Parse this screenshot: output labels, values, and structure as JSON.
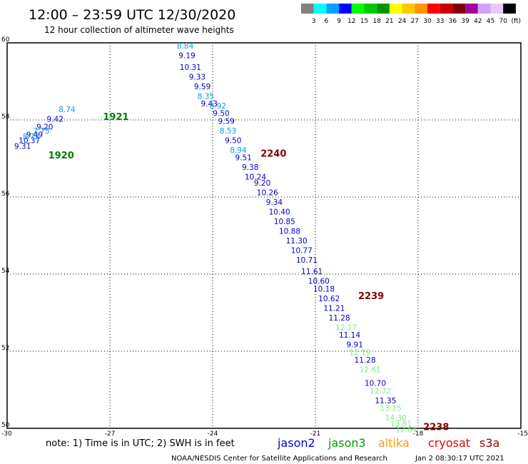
{
  "title": "12:00 – 23:59 UTC 12/30/2020",
  "subtitle": "12 hour collection of altimeter wave heights",
  "legend": {
    "colors": [
      "#808080",
      "#00ffff",
      "#00a0ff",
      "#0000ff",
      "#00ff00",
      "#00c800",
      "#009600",
      "#ffff00",
      "#ffc800",
      "#ff9600",
      "#ff0000",
      "#c80000",
      "#800000",
      "#a000a0",
      "#d2a0ff",
      "#e6c8ff",
      "#000000"
    ],
    "labels": [
      "3",
      "6",
      "9",
      "12",
      "15",
      "18",
      "21",
      "24",
      "27",
      "30",
      "33",
      "36",
      "39",
      "42",
      "45",
      "70"
    ],
    "unit": "(ft)"
  },
  "axes": {
    "x_ticks": [
      "-30",
      "-27",
      "-24",
      "-21",
      "-18",
      "-15"
    ],
    "y_ticks": [
      "50",
      "52",
      "54",
      "56",
      "58",
      "60"
    ]
  },
  "chart_data": {
    "type": "scatter",
    "xlim": [
      -30,
      -15
    ],
    "ylim": [
      50,
      60
    ],
    "grid": true,
    "series": [
      {
        "name": "jason2",
        "color": "#0000c8",
        "points": [
          {
            "lon": -28.9,
            "lat": 57.75,
            "v": "9.20"
          },
          {
            "lon": -28.6,
            "lat": 57.95,
            "v": "9.42"
          },
          {
            "lon": -29.55,
            "lat": 57.25,
            "v": "9.31"
          },
          {
            "lon": -29.2,
            "lat": 57.55,
            "v": "9.49"
          },
          {
            "lon": -29.35,
            "lat": 57.4,
            "v": "10.37"
          },
          {
            "lon": -24.75,
            "lat": 59.6,
            "v": "9.19"
          },
          {
            "lon": -24.65,
            "lat": 59.3,
            "v": "10.31"
          },
          {
            "lon": -24.45,
            "lat": 59.05,
            "v": "9.33"
          },
          {
            "lon": -24.3,
            "lat": 58.8,
            "v": "9.59"
          },
          {
            "lon": -24.1,
            "lat": 58.35,
            "v": "9.43"
          },
          {
            "lon": -23.75,
            "lat": 58.1,
            "v": "9.50"
          },
          {
            "lon": -23.6,
            "lat": 57.9,
            "v": "9.59"
          },
          {
            "lon": -23.4,
            "lat": 57.4,
            "v": "9.50"
          },
          {
            "lon": -23.1,
            "lat": 56.95,
            "v": "9.51"
          },
          {
            "lon": -22.9,
            "lat": 56.7,
            "v": "9.38"
          },
          {
            "lon": -22.75,
            "lat": 56.45,
            "v": "10.24"
          },
          {
            "lon": -22.55,
            "lat": 56.3,
            "v": "9.20"
          },
          {
            "lon": -22.4,
            "lat": 56.05,
            "v": "10.26"
          },
          {
            "lon": -22.2,
            "lat": 55.8,
            "v": "9.34"
          },
          {
            "lon": -22.05,
            "lat": 55.55,
            "v": "10.40"
          },
          {
            "lon": -21.9,
            "lat": 55.3,
            "v": "10.85"
          },
          {
            "lon": -21.75,
            "lat": 55.05,
            "v": "10.88"
          },
          {
            "lon": -21.55,
            "lat": 54.8,
            "v": "11.30"
          },
          {
            "lon": -21.4,
            "lat": 54.55,
            "v": "10.77"
          },
          {
            "lon": -21.25,
            "lat": 54.3,
            "v": "10.71"
          },
          {
            "lon": -21.1,
            "lat": 54.0,
            "v": "11.61"
          },
          {
            "lon": -20.9,
            "lat": 53.75,
            "v": "10.60"
          },
          {
            "lon": -20.75,
            "lat": 53.55,
            "v": "10.18"
          },
          {
            "lon": -20.6,
            "lat": 53.3,
            "v": "10.62"
          },
          {
            "lon": -20.45,
            "lat": 53.05,
            "v": "11.21"
          },
          {
            "lon": -20.3,
            "lat": 52.8,
            "v": "11.28"
          },
          {
            "lon": -20.0,
            "lat": 52.35,
            "v": "11.14"
          },
          {
            "lon": -19.85,
            "lat": 52.1,
            "v": "9.91"
          },
          {
            "lon": -19.55,
            "lat": 51.7,
            "v": "11.28"
          },
          {
            "lon": -19.25,
            "lat": 51.1,
            "v": "10.70"
          },
          {
            "lon": -18.95,
            "lat": 50.65,
            "v": "11.35"
          }
        ]
      },
      {
        "name": "jason3",
        "color": "#00a0e6",
        "points": [
          {
            "lon": -28.25,
            "lat": 58.2,
            "v": "8.74"
          },
          {
            "lon": -29.0,
            "lat": 57.65,
            "v": "7.73"
          },
          {
            "lon": -29.3,
            "lat": 57.5,
            "v": "8.72"
          },
          {
            "lon": -24.8,
            "lat": 59.85,
            "v": "8.84"
          },
          {
            "lon": -24.2,
            "lat": 58.55,
            "v": "8.35"
          },
          {
            "lon": -23.85,
            "lat": 58.3,
            "v": "8.92"
          },
          {
            "lon": -23.55,
            "lat": 57.65,
            "v": "8.53"
          },
          {
            "lon": -23.25,
            "lat": 57.15,
            "v": "8.94"
          }
        ]
      },
      {
        "name": "altika",
        "color": "#7cf07c",
        "points": [
          {
            "lon": -20.1,
            "lat": 52.55,
            "v": "12.17"
          },
          {
            "lon": -19.7,
            "lat": 51.9,
            "v": "12.19"
          },
          {
            "lon": -19.4,
            "lat": 51.45,
            "v": "12.61"
          },
          {
            "lon": -19.1,
            "lat": 50.9,
            "v": "12.72"
          },
          {
            "lon": -18.8,
            "lat": 50.45,
            "v": "13.15"
          },
          {
            "lon": -18.65,
            "lat": 50.2,
            "v": "14.30"
          },
          {
            "lon": -18.5,
            "lat": 50.05,
            "v": "13.81"
          },
          {
            "lon": -18.35,
            "lat": 49.9,
            "v": "12.64"
          }
        ]
      }
    ],
    "time_labels": [
      {
        "lon": -27.2,
        "lat": 58.0,
        "t": "1921",
        "color": "#008000"
      },
      {
        "lon": -28.8,
        "lat": 57.0,
        "t": "1920",
        "color": "#008000"
      },
      {
        "lon": -22.6,
        "lat": 57.05,
        "t": "2240",
        "color": "#800000"
      },
      {
        "lon": -19.75,
        "lat": 53.35,
        "t": "2239",
        "color": "#800000"
      },
      {
        "lon": -17.85,
        "lat": 49.95,
        "t": "2238",
        "color": "#800000"
      }
    ]
  },
  "notes": {
    "text": "note: 1) Time is in UTC; 2) SWH is in feet",
    "satellites": [
      {
        "name": "jason2",
        "color": "#0000e6"
      },
      {
        "name": "jason3",
        "color": "#00a000"
      },
      {
        "name": "altika",
        "color": "#ff9600"
      },
      {
        "name": "cryosat",
        "color": "#e60000"
      },
      {
        "name": "s3a",
        "color": "#a00000"
      }
    ],
    "credit": "NOAA/NESDIS Center for Satellite Applications and Research",
    "timestamp": "Jan  2 08:30:17 UTC 2021"
  }
}
